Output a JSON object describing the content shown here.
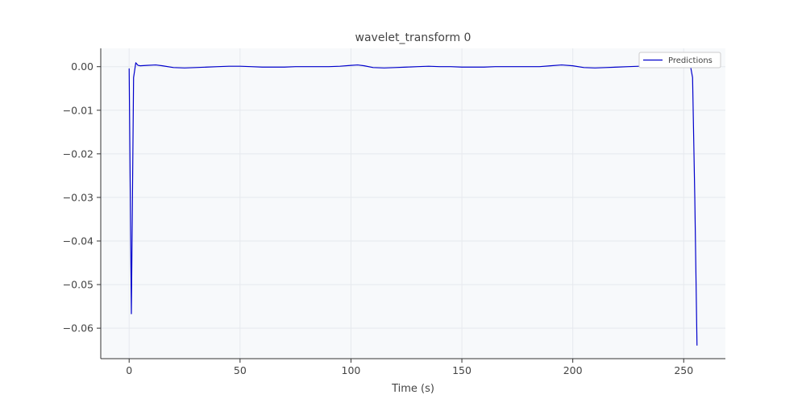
{
  "chart_data": {
    "type": "line",
    "title": "wavelet_transform 0",
    "xlabel": "Time (s)",
    "ylabel": "",
    "xlim": [
      -12.8,
      268.8
    ],
    "ylim": [
      -0.067,
      0.0042
    ],
    "xticks": [
      0,
      50,
      100,
      150,
      200,
      250
    ],
    "xtick_labels": [
      "0",
      "50",
      "100",
      "150",
      "200",
      "250"
    ],
    "yticks": [
      0.0,
      -0.01,
      -0.02,
      -0.03,
      -0.04,
      -0.05,
      -0.06
    ],
    "ytick_labels": [
      "0.00",
      "−0.01",
      "−0.02",
      "−0.03",
      "−0.04",
      "−0.05",
      "−0.06"
    ],
    "grid": true,
    "legend_position": "top-right",
    "series": [
      {
        "name": "Predictions",
        "color": "#0000cc",
        "x": [
          0,
          1,
          2,
          3,
          4,
          5,
          8,
          12,
          15,
          20,
          25,
          30,
          35,
          40,
          45,
          50,
          55,
          60,
          65,
          70,
          75,
          80,
          85,
          90,
          95,
          100,
          103,
          106,
          110,
          115,
          120,
          125,
          130,
          135,
          140,
          145,
          150,
          155,
          160,
          165,
          170,
          175,
          180,
          185,
          190,
          195,
          200,
          205,
          210,
          215,
          220,
          225,
          230,
          235,
          240,
          245,
          250,
          253,
          254,
          255,
          256
        ],
        "y": [
          -0.0004,
          -0.0567,
          -0.0025,
          0.0009,
          0.0003,
          0.0002,
          0.0003,
          0.0004,
          0.0002,
          -0.0002,
          -0.0003,
          -0.0002,
          -0.0001,
          0.0,
          0.0001,
          0.0001,
          0.0,
          -0.0001,
          -0.0001,
          -0.0001,
          0.0,
          0.0,
          0.0,
          0.0,
          0.0001,
          0.0003,
          0.0004,
          0.0002,
          -0.0002,
          -0.0003,
          -0.0002,
          -0.0001,
          0.0,
          0.0001,
          0.0,
          0.0,
          -0.0001,
          -0.0001,
          -0.0001,
          0.0,
          0.0,
          0.0,
          0.0,
          0.0,
          0.0002,
          0.0004,
          0.0002,
          -0.0002,
          -0.0003,
          -0.0002,
          -0.0001,
          0.0,
          0.0001,
          0.0001,
          0.0,
          0.0001,
          0.0002,
          0.0003,
          -0.0025,
          -0.03,
          -0.064
        ]
      }
    ]
  }
}
